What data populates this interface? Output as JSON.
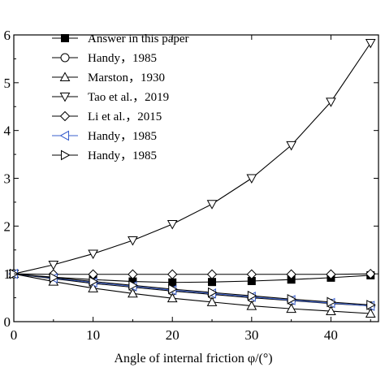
{
  "chart_data": {
    "type": "line",
    "xlabel": "Angle of internal friction φ/(°)",
    "ylabel": "",
    "xlim": [
      0,
      46
    ],
    "ylim": [
      0,
      6
    ],
    "xticks": [
      0,
      10,
      20,
      30,
      40
    ],
    "yticks": [
      0,
      1,
      2,
      3,
      4,
      5,
      6
    ],
    "ytick_labels": [
      "0",
      "1",
      "2",
      "3",
      "4",
      "5",
      "6"
    ],
    "xtick_labels": [
      "0",
      "10",
      "20",
      "30",
      "40"
    ],
    "grid": false,
    "legend_position": "top-left",
    "series": [
      {
        "name": "Answer in this paper",
        "marker": "filled-square",
        "color": "#000000",
        "x": [
          0,
          5,
          10,
          15,
          20,
          25,
          30,
          35,
          40,
          45
        ],
        "y": [
          1.0,
          0.93,
          0.88,
          0.84,
          0.82,
          0.83,
          0.85,
          0.88,
          0.92,
          0.97
        ]
      },
      {
        "name": "Handy，1985",
        "marker": "circle",
        "color": "#000000",
        "x": [
          0,
          5,
          10,
          15,
          20,
          25,
          30,
          35,
          40,
          45
        ],
        "y": [
          1.0,
          0.9,
          0.8,
          0.72,
          0.64,
          0.57,
          0.5,
          0.44,
          0.38,
          0.33
        ]
      },
      {
        "name": "Marston，1930",
        "marker": "triangle-up",
        "color": "#000000",
        "x": [
          0,
          5,
          10,
          15,
          20,
          25,
          30,
          35,
          40,
          45
        ],
        "y": [
          1.0,
          0.84,
          0.7,
          0.59,
          0.49,
          0.41,
          0.33,
          0.27,
          0.22,
          0.17
        ]
      },
      {
        "name": "Tao et al.，2019",
        "marker": "triangle-down",
        "color": "#000000",
        "x": [
          0,
          5,
          10,
          15,
          20,
          25,
          30,
          35,
          40,
          45
        ],
        "y": [
          1.0,
          1.19,
          1.42,
          1.7,
          2.04,
          2.46,
          3.0,
          3.69,
          4.6,
          5.83
        ]
      },
      {
        "name": "Li et al.，2015",
        "marker": "diamond",
        "color": "#000000",
        "x": [
          0,
          5,
          10,
          15,
          20,
          25,
          30,
          35,
          40,
          45
        ],
        "y": [
          1.0,
          0.99,
          0.99,
          0.99,
          0.99,
          0.99,
          0.99,
          0.99,
          0.99,
          1.0
        ]
      },
      {
        "name": "Handy，1985",
        "marker": "triangle-left",
        "color": "#3a5fcd",
        "x": [
          0,
          5,
          10,
          15,
          20,
          25,
          30,
          35,
          40,
          45
        ],
        "y": [
          1.0,
          0.91,
          0.82,
          0.74,
          0.66,
          0.59,
          0.52,
          0.45,
          0.39,
          0.33
        ]
      },
      {
        "name": "Handy，1985",
        "marker": "triangle-right",
        "color": "#000000",
        "x": [
          0,
          5,
          10,
          15,
          20,
          25,
          30,
          35,
          40,
          45
        ],
        "y": [
          1.0,
          0.92,
          0.84,
          0.76,
          0.68,
          0.61,
          0.54,
          0.47,
          0.41,
          0.35
        ]
      }
    ]
  }
}
